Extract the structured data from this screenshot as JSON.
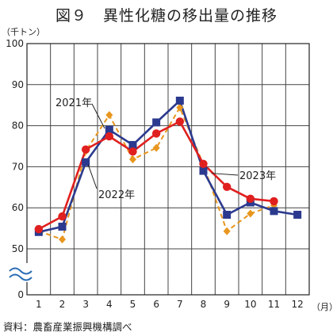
{
  "title": "図９　異性化糖の移出量の推移",
  "source": "資料：農畜産業振興機構調べ",
  "chart_data": {
    "type": "line",
    "x": [
      1,
      2,
      3,
      4,
      5,
      6,
      7,
      8,
      9,
      10,
      11,
      12
    ],
    "x_unit": "（月）",
    "y_unit": "（千トン）",
    "y_ticks": [
      0,
      50,
      60,
      70,
      80,
      90,
      100
    ],
    "ylim_upper": [
      50,
      100
    ],
    "axis_break": true,
    "grid": true,
    "series": [
      {
        "name": "2021年",
        "color": "#e8961e",
        "style": "dashed",
        "marker": "diamond",
        "values": [
          54.3,
          52.3,
          73.8,
          82.6,
          71.8,
          74.6,
          84.4,
          70.5,
          54.3,
          58.6,
          60.6,
          null
        ]
      },
      {
        "name": "2022年",
        "color": "#2b3a8f",
        "style": "solid",
        "marker": "square",
        "values": [
          54.1,
          55.4,
          71.1,
          79.0,
          75.3,
          80.8,
          86.1,
          69.0,
          58.3,
          61.3,
          59.2,
          58.3
        ]
      },
      {
        "name": "2023年",
        "color": "#e01f1f",
        "style": "solid",
        "marker": "circle",
        "values": [
          54.8,
          57.9,
          74.2,
          77.4,
          73.7,
          78.1,
          81.0,
          70.7,
          65.1,
          62.2,
          61.6,
          null
        ]
      }
    ]
  }
}
